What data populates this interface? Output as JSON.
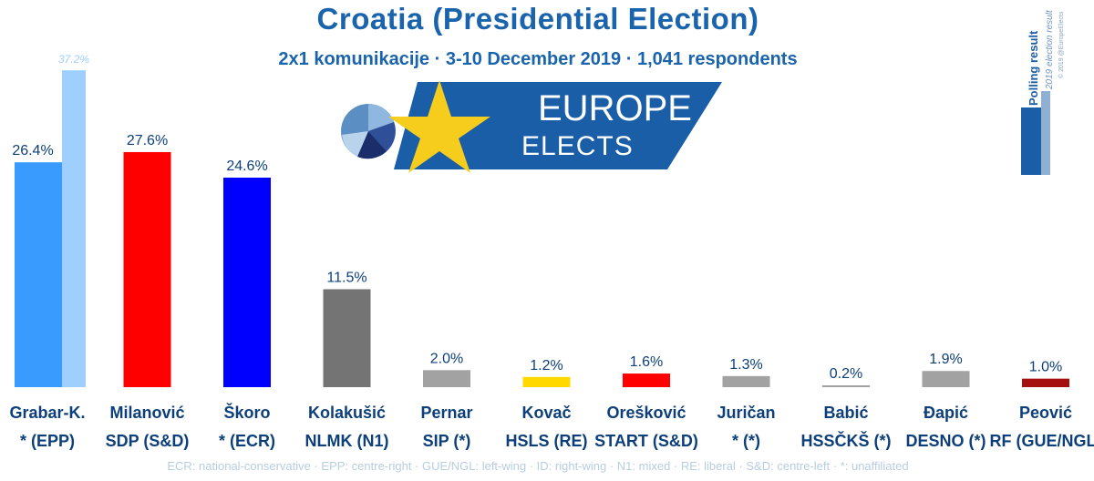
{
  "header": {
    "title": "Croatia (Presidential Election)",
    "subtitle": "2x1 komunikacije · 3-10 December 2019 · 1,041 respondents"
  },
  "logo": {
    "line1": "EUROPE",
    "line2": "ELECTS"
  },
  "legend": {
    "polling_label": "Polling result",
    "election_label": "2019 election result",
    "credit": "© 2019 @EuropeElects"
  },
  "colors": {
    "accent": "#1a63ad",
    "label_text": "#0d3f7a"
  },
  "chart_data": {
    "type": "bar",
    "title": "Croatia (Presidential Election)",
    "ylim": [
      0,
      40
    ],
    "candidates": [
      {
        "name": "Grabar-K.",
        "party": "* (EPP)",
        "value": 26.4,
        "label": "26.4%",
        "color": "#3a9bff",
        "previous": 37.2,
        "previous_label": "37.2%",
        "previous_color": "#9ecfff"
      },
      {
        "name": "Milanović",
        "party": "SDP (S&D)",
        "value": 27.6,
        "label": "27.6%",
        "color": "#ff0000"
      },
      {
        "name": "Škoro",
        "party": "* (ECR)",
        "value": 24.6,
        "label": "24.6%",
        "color": "#0000ff"
      },
      {
        "name": "Kolakušić",
        "party": "NLMK (N1)",
        "value": 11.5,
        "label": "11.5%",
        "color": "#747474"
      },
      {
        "name": "Pernar",
        "party": "SIP (*)",
        "value": 2.0,
        "label": "2.0%",
        "color": "#a2a2a2"
      },
      {
        "name": "Kovač",
        "party": "HSLS (RE)",
        "value": 1.2,
        "label": "1.2%",
        "color": "#ffd800"
      },
      {
        "name": "Orešković",
        "party": "START (S&D)",
        "value": 1.6,
        "label": "1.6%",
        "color": "#ff0000"
      },
      {
        "name": "Juričan",
        "party": "* (*)",
        "value": 1.3,
        "label": "1.3%",
        "color": "#a2a2a2"
      },
      {
        "name": "Babić",
        "party": "HSSČKŠ (*)",
        "value": 0.2,
        "label": "0.2%",
        "color": "#a2a2a2"
      },
      {
        "name": "Đapić",
        "party": "DESNO (*)",
        "value": 1.9,
        "label": "1.9%",
        "color": "#a2a2a2"
      },
      {
        "name": "Peović",
        "party": "RF (GUE/NGL)",
        "value": 1.0,
        "label": "1.0%",
        "color": "#a50f0f"
      }
    ]
  },
  "footnote": "ECR: national-conservative · EPP: centre-right · GUE/NGL: left-wing · ID: right-wing · N1: mixed · RE: liberal · S&D: centre-left · *: unaffiliated"
}
